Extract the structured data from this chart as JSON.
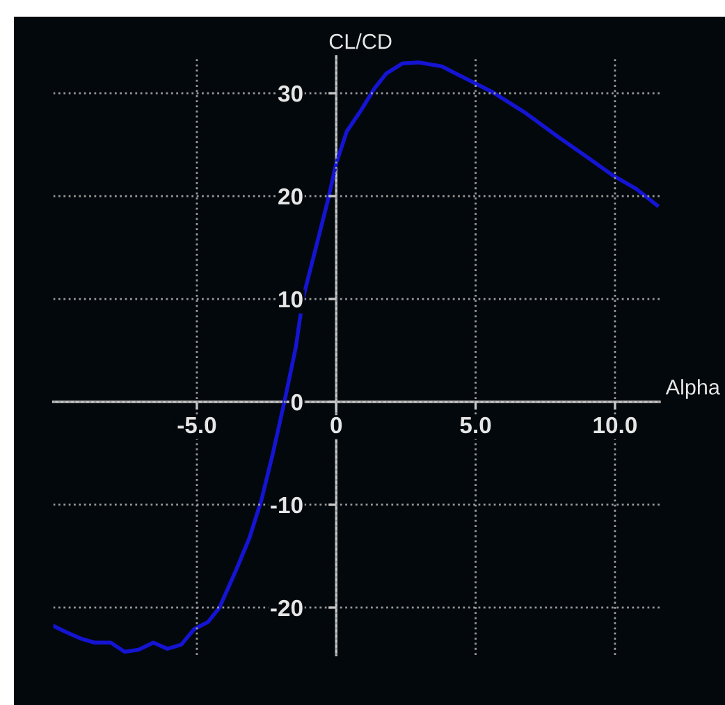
{
  "chart_data": {
    "type": "line",
    "xlabel": "Alpha",
    "ylabel": "CL/CD",
    "xlim": [
      -10.15,
      11.6
    ],
    "ylim": [
      -24.6,
      33.6
    ],
    "xticks": [
      {
        "value": -5,
        "label": "-5.0"
      },
      0,
      {
        "value": 5,
        "label": "5.0"
      },
      {
        "value": 10,
        "label": "10.0"
      }
    ],
    "yticks": [
      -20,
      -10,
      0,
      10,
      20,
      30
    ],
    "grid": true,
    "line_style": "solid",
    "marker": "none",
    "series": [
      {
        "color": "#1414d2",
        "x": [
          -10.13,
          -9.67,
          -9.17,
          -8.67,
          -8.09,
          -7.59,
          -7.09,
          -6.56,
          -6.06,
          -5.56,
          -5.1,
          -4.6,
          -4.19,
          -3.6,
          -3.11,
          -2.69,
          -2.28,
          -1.86,
          -1.45,
          -1.2,
          -0.7,
          -0.28,
          0,
          0.38,
          0.88,
          1.38,
          1.79,
          2.38,
          2.96,
          3.79,
          4.45,
          5.61,
          6.78,
          7.94,
          9.1,
          9.93,
          10.76,
          11.51
        ],
        "values": [
          -21.8,
          -22.4,
          -23.0,
          -23.4,
          -23.4,
          -24.3,
          -24.1,
          -23.4,
          -24.0,
          -23.6,
          -22.1,
          -21.4,
          -20.0,
          -16.4,
          -13.2,
          -9.6,
          -5.1,
          0,
          5.3,
          10.0,
          15.3,
          19.8,
          23.2,
          26.3,
          28.3,
          30.5,
          31.9,
          32.9,
          33.0,
          32.6,
          31.7,
          30.1,
          28.1,
          25.8,
          23.6,
          22.0,
          20.7,
          19.1
        ]
      }
    ]
  }
}
